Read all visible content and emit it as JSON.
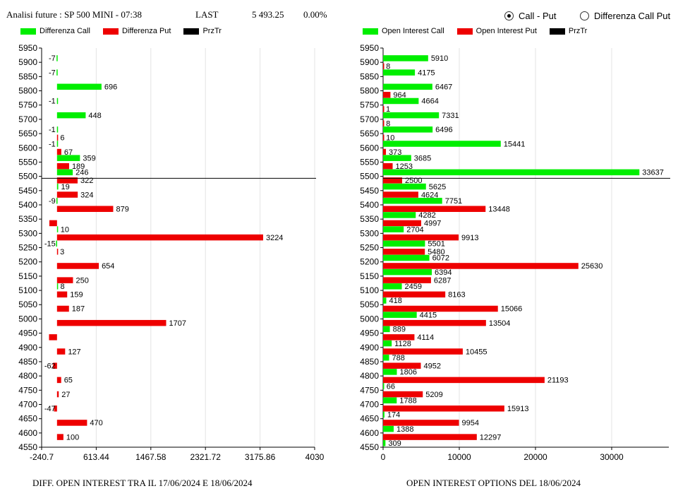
{
  "header": {
    "title": "Analisi future : SP 500 MINI - 07:38",
    "last_label": "LAST",
    "last_value": "5 493.25",
    "change": "0.00%"
  },
  "options": {
    "call_put": "Call - Put",
    "diff_call_put": "Differenza Call Put",
    "selected": "call_put"
  },
  "colors": {
    "call": "#00ee00",
    "put": "#ee0000",
    "price": "#000000"
  },
  "chart_data": [
    {
      "type": "bar",
      "caption": "DIFF. OPEN INTEREST TRA IL 17/06/2024 E 18/06/2024",
      "legend": [
        "Differenza Call",
        "Differenza Put",
        "PrzTr"
      ],
      "strikes": [
        5950,
        5900,
        5850,
        5800,
        5750,
        5700,
        5650,
        5600,
        5550,
        5500,
        5450,
        5400,
        5350,
        5300,
        5250,
        5200,
        5150,
        5100,
        5050,
        5000,
        4950,
        4900,
        4850,
        4800,
        4750,
        4700,
        4650,
        4600,
        4550
      ],
      "xticks": [
        "-240.7",
        "613.44",
        "1467.58",
        "2321.72",
        "3175.86",
        "4030"
      ],
      "xlim": [
        -240.7,
        4030
      ],
      "price_line": 5493.25,
      "series": [
        {
          "name": "Differenza Call",
          "values": [
            null,
            -7,
            -7,
            696,
            -1,
            448,
            -1,
            -1,
            359,
            246,
            19,
            -9,
            null,
            10,
            -15,
            null,
            null,
            8,
            null,
            null,
            null,
            null,
            null,
            null,
            null,
            null,
            null,
            null,
            null
          ]
        },
        {
          "name": "Differenza Put",
          "values": [
            null,
            null,
            null,
            null,
            null,
            null,
            6,
            67,
            189,
            322,
            324,
            879,
            null,
            3224,
            3,
            654,
            250,
            159,
            187,
            1707,
            null,
            127,
            -62,
            65,
            27,
            -47,
            470,
            100,
            null
          ]
        }
      ],
      "unlabeled_call_bars": [],
      "unlabeled_put_bars": [
        {
          "strike": 5350,
          "value": -120
        },
        {
          "strike": 4950,
          "value": -125
        }
      ]
    },
    {
      "type": "bar",
      "caption": "OPEN INTEREST OPTIONS DEL 18/06/2024",
      "legend": [
        "Open Interest Call",
        "Open Interest Put",
        "PrzTr"
      ],
      "strikes": [
        5950,
        5900,
        5850,
        5800,
        5750,
        5700,
        5650,
        5600,
        5550,
        5500,
        5450,
        5400,
        5350,
        5300,
        5250,
        5200,
        5150,
        5100,
        5050,
        5000,
        4950,
        4900,
        4850,
        4800,
        4750,
        4700,
        4650,
        4600,
        4550
      ],
      "xticks": [
        "0",
        "10000",
        "20000",
        "30000"
      ],
      "xlim": [
        0,
        37500
      ],
      "price_line": 5493.25,
      "series": [
        {
          "name": "Open Interest Call",
          "values": [
            null,
            5910,
            4175,
            6467,
            4664,
            7331,
            6496,
            15441,
            3685,
            33637,
            5625,
            7751,
            4282,
            2704,
            5501,
            6072,
            6394,
            2459,
            418,
            4415,
            889,
            1128,
            788,
            1806,
            66,
            1788,
            174,
            1388,
            309
          ]
        },
        {
          "name": "Open Interest Put",
          "values": [
            null,
            8,
            null,
            964,
            1,
            8,
            10,
            373,
            1253,
            2500,
            4624,
            13448,
            4997,
            9913,
            5480,
            25630,
            6287,
            8163,
            15066,
            13504,
            4114,
            10455,
            4952,
            21193,
            5209,
            15913,
            9954,
            12297,
            null
          ]
        }
      ]
    }
  ]
}
